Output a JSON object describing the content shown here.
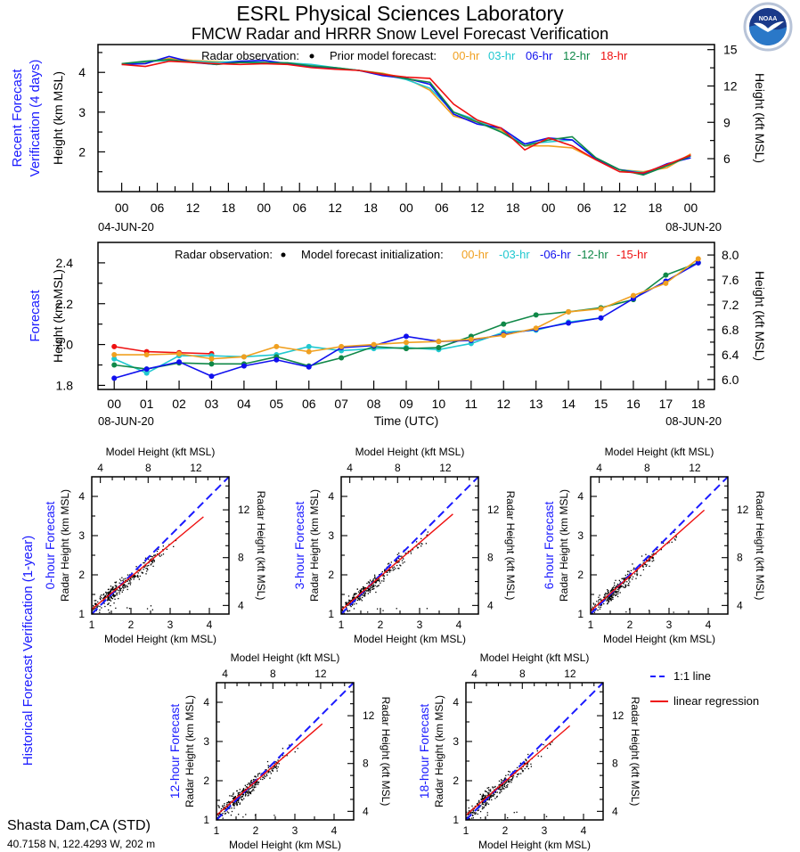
{
  "header": {
    "title": "ESRL Physical Sciences Laboratory",
    "subtitle": "FMCW Radar and HRRR Snow Level Forecast Verification",
    "logo": "noaa-logo"
  },
  "station": {
    "name": "Shasta Dam,CA (STD)",
    "coords": "40.7158 N, 122.4293 W, 202 m"
  },
  "colors": {
    "00-hr": "#f0a020",
    "03-hr": "#20c8d0",
    "06-hr": "#1010ee",
    "12-hr": "#108848",
    "18-hr": "#ee1010",
    "section_label": "#1a1aff"
  },
  "chart_data": [
    {
      "type": "line",
      "id": "recent",
      "section_label": [
        "Recent Forecast",
        "Verification (4 days)"
      ],
      "ylabel": "Height (km MSL)",
      "ylabel_right": "Height (kft MSL)",
      "legend_obs": "Radar observation:",
      "legend_model": "Prior model forecast:",
      "ylim": [
        1.0,
        4.7
      ],
      "yticks": [
        2,
        3,
        4
      ],
      "yticks_right": [
        6,
        9,
        12,
        15
      ],
      "xlim": [
        -4,
        100
      ],
      "xtick_labels": [
        "00",
        "06",
        "12",
        "18",
        "00",
        "06",
        "12",
        "18",
        "00",
        "06",
        "12",
        "18",
        "00",
        "06",
        "12",
        "18",
        "00"
      ],
      "x_start_label": "04-JUN-20",
      "x_end_label": "08-JUN-20",
      "x": [
        0,
        4,
        8,
        12,
        16,
        20,
        24,
        28,
        32,
        36,
        40,
        44,
        48,
        52,
        56,
        60,
        64,
        68,
        72,
        76,
        80,
        84,
        88,
        92,
        96
      ],
      "series": [
        {
          "name": "00-hr",
          "values": [
            4.22,
            4.25,
            4.35,
            4.3,
            4.27,
            4.25,
            4.26,
            4.22,
            4.18,
            4.1,
            4.05,
            3.98,
            3.85,
            3.55,
            2.9,
            2.75,
            2.55,
            2.15,
            2.15,
            2.1,
            1.8,
            1.55,
            1.5,
            1.6,
            1.95
          ]
        },
        {
          "name": "03-hr",
          "values": [
            4.2,
            4.27,
            4.3,
            4.28,
            4.25,
            4.28,
            4.25,
            4.24,
            4.2,
            4.12,
            4.05,
            3.95,
            3.82,
            3.6,
            3.0,
            2.8,
            2.5,
            2.2,
            2.25,
            2.3,
            1.85,
            1.55,
            1.48,
            1.65,
            1.9
          ]
        },
        {
          "name": "06-hr",
          "values": [
            4.2,
            4.22,
            4.4,
            4.25,
            4.2,
            4.28,
            4.3,
            4.22,
            4.15,
            4.1,
            4.05,
            3.92,
            3.85,
            3.7,
            2.95,
            2.7,
            2.6,
            2.2,
            2.35,
            2.3,
            1.82,
            1.55,
            1.45,
            1.7,
            1.85
          ]
        },
        {
          "name": "12-hr",
          "values": [
            4.22,
            4.28,
            4.32,
            4.26,
            4.2,
            4.25,
            4.24,
            4.24,
            4.16,
            4.12,
            4.05,
            3.96,
            3.84,
            3.75,
            3.0,
            2.75,
            2.5,
            2.15,
            2.3,
            2.38,
            1.85,
            1.55,
            1.42,
            1.65,
            1.9
          ]
        },
        {
          "name": "18-hr",
          "values": [
            4.2,
            4.15,
            4.28,
            4.25,
            4.22,
            4.2,
            4.22,
            4.2,
            4.12,
            4.08,
            4.05,
            3.95,
            3.88,
            3.85,
            3.2,
            2.8,
            2.6,
            2.05,
            2.35,
            2.15,
            1.8,
            1.5,
            1.47,
            1.68,
            1.92
          ]
        }
      ]
    },
    {
      "type": "line",
      "id": "forecast",
      "section_label": [
        "Forecast"
      ],
      "ylabel": "Height (km MSL)",
      "ylabel_right": "Height (kft MSL)",
      "xlabel": "Time (UTC)",
      "legend_obs": "Radar observation:",
      "legend_model": "Model forecast initialization:",
      "ylim": [
        1.78,
        2.5
      ],
      "yticks": [
        1.8,
        2.0,
        2.2,
        2.4
      ],
      "yticks_right": [
        6.0,
        6.4,
        6.8,
        7.2,
        7.6,
        8.0
      ],
      "xlim": [
        -0.5,
        18.5
      ],
      "xtick_labels": [
        "00",
        "01",
        "02",
        "03",
        "04",
        "05",
        "06",
        "07",
        "08",
        "09",
        "10",
        "11",
        "12",
        "13",
        "14",
        "15",
        "16",
        "17",
        "18"
      ],
      "x_start_label": "08-JUN-20",
      "x_end_label": "08-JUN-20",
      "series": [
        {
          "name": "00-hr",
          "label": "00-hr",
          "x": [
            0,
            1,
            2,
            3,
            4,
            5,
            6,
            7,
            8,
            9,
            10,
            11,
            12,
            13,
            14,
            15,
            16,
            17,
            18
          ],
          "values": [
            1.95,
            1.95,
            1.955,
            1.93,
            1.94,
            1.99,
            1.965,
            1.99,
            2.0,
            2.01,
            2.015,
            2.025,
            2.045,
            2.08,
            2.16,
            2.175,
            2.24,
            2.3,
            2.42
          ]
        },
        {
          "name": "03-hr",
          "label": "-03-hr",
          "x": [
            0,
            1,
            2,
            3,
            4,
            5,
            6,
            7,
            8,
            9,
            10,
            11,
            12,
            13,
            14,
            15
          ],
          "values": [
            1.93,
            1.86,
            1.945,
            1.945,
            1.94,
            1.95,
            1.99,
            1.97,
            1.98,
            1.985,
            1.975,
            2.005,
            2.06,
            2.07,
            2.11,
            2.13
          ]
        },
        {
          "name": "06-hr",
          "label": "-06-hr",
          "x": [
            0,
            1,
            2,
            3,
            4,
            5,
            6,
            7,
            8,
            9,
            10,
            11,
            12,
            13,
            14,
            15,
            16,
            17,
            18
          ],
          "values": [
            1.835,
            1.88,
            1.915,
            1.845,
            1.895,
            1.925,
            1.89,
            1.985,
            1.995,
            2.04,
            2.015,
            2.02,
            2.05,
            2.075,
            2.105,
            2.13,
            2.225,
            2.31,
            2.4
          ]
        },
        {
          "name": "12-hr",
          "label": "-12-hr",
          "x": [
            0,
            1,
            2,
            3,
            4,
            5,
            6,
            7,
            8,
            9,
            10,
            11,
            12,
            13,
            14,
            15,
            16,
            17,
            18
          ],
          "values": [
            1.9,
            1.88,
            1.91,
            1.905,
            1.905,
            1.94,
            1.895,
            1.935,
            1.99,
            1.98,
            1.985,
            2.04,
            2.1,
            2.145,
            2.16,
            2.18,
            2.22,
            2.34,
            2.4
          ]
        },
        {
          "name": "18-hr",
          "label": "-15-hr",
          "x": [
            0,
            1,
            2,
            3
          ],
          "values": [
            1.99,
            1.965,
            1.96,
            1.955
          ]
        }
      ]
    },
    {
      "type": "scatter",
      "id": "hist-0",
      "title": "0-hour Forecast",
      "xlabel": "Model Height (km MSL)",
      "xlabel_top": "Model Height (kft MSL)",
      "ylabel": "Radar Height (km MSL)",
      "ylabel_right": "Radar Height (kft MSL)",
      "xlim": [
        1,
        4.5
      ],
      "ylim": [
        1,
        4.5
      ],
      "ticks": [
        1,
        2,
        3,
        4
      ],
      "ticks_kft": [
        4,
        8,
        12
      ],
      "regression": {
        "x0": 1.0,
        "y0": 1.12,
        "x1": 3.85,
        "y1": 3.48
      },
      "seed": 11
    },
    {
      "type": "scatter",
      "id": "hist-3",
      "title": "3-hour Forecast",
      "xlabel": "Model Height (km MSL)",
      "xlabel_top": "Model Height (kft MSL)",
      "ylabel": "Radar Height (km MSL)",
      "ylabel_right": "Radar Height (kft MSL)",
      "xlim": [
        1,
        4.5
      ],
      "ylim": [
        1,
        4.5
      ],
      "ticks": [
        1,
        2,
        3,
        4
      ],
      "ticks_kft": [
        4,
        8,
        12
      ],
      "regression": {
        "x0": 1.0,
        "y0": 1.1,
        "x1": 3.85,
        "y1": 3.55
      },
      "seed": 23
    },
    {
      "type": "scatter",
      "id": "hist-6",
      "title": "6-hour Forecast",
      "xlabel": "Model Height (km MSL)",
      "xlabel_top": "Model Height (kft MSL)",
      "ylabel": "Radar Height (km MSL)",
      "ylabel_right": "Radar Height (kft MSL)",
      "xlim": [
        1,
        4.5
      ],
      "ylim": [
        1,
        4.5
      ],
      "ticks": [
        1,
        2,
        3,
        4
      ],
      "ticks_kft": [
        4,
        8,
        12
      ],
      "regression": {
        "x0": 1.0,
        "y0": 1.08,
        "x1": 3.9,
        "y1": 3.65
      },
      "seed": 37
    },
    {
      "type": "scatter",
      "id": "hist-12",
      "title": "12-hour Forecast",
      "xlabel": "Model Height (km MSL)",
      "xlabel_top": "Model Height (kft MSL)",
      "ylabel": "Radar Height (km MSL)",
      "ylabel_right": "Radar Height (kft MSL)",
      "xlim": [
        1,
        4.5
      ],
      "ylim": [
        1,
        4.5
      ],
      "ticks": [
        1,
        2,
        3,
        4
      ],
      "ticks_kft": [
        4,
        8,
        12
      ],
      "regression": {
        "x0": 1.0,
        "y0": 1.12,
        "x1": 3.7,
        "y1": 3.45
      },
      "seed": 53
    },
    {
      "type": "scatter",
      "id": "hist-18",
      "title": "18-hour Forecast",
      "xlabel": "Model Height (km MSL)",
      "xlabel_top": "Model Height (kft MSL)",
      "ylabel": "Radar Height (km MSL)",
      "ylabel_right": "Radar Height (kft MSL)",
      "xlim": [
        1,
        4.5
      ],
      "ylim": [
        1,
        4.5
      ],
      "ticks": [
        1,
        2,
        3,
        4
      ],
      "ticks_kft": [
        4,
        8,
        12
      ],
      "regression": {
        "x0": 1.0,
        "y0": 1.12,
        "x1": 3.65,
        "y1": 3.4
      },
      "seed": 71
    }
  ],
  "historical": {
    "section_label": "Historical Forecast Verification (1-year)",
    "legend": [
      {
        "name": "one-to-one",
        "label": "1:1 line"
      },
      {
        "name": "regression",
        "label": "linear regression"
      }
    ]
  }
}
